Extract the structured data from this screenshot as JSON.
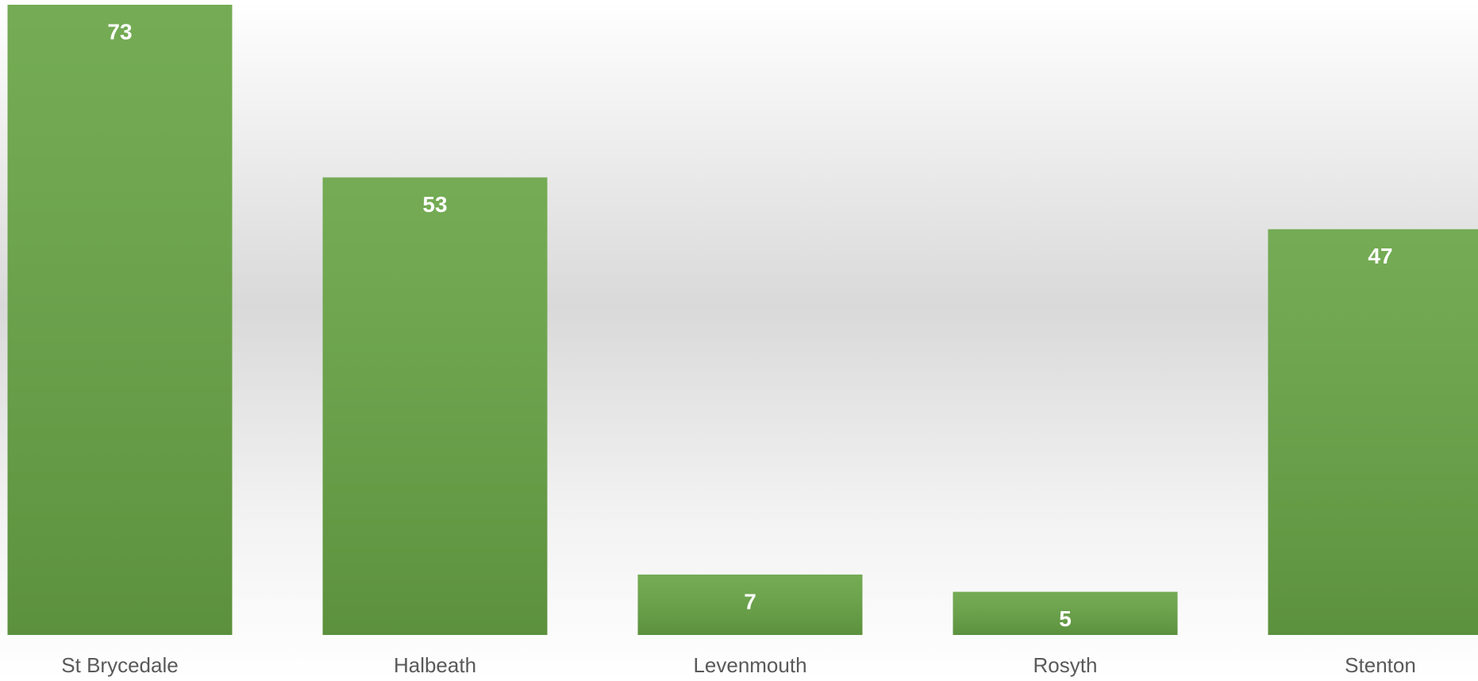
{
  "chart_data": {
    "type": "bar",
    "categories": [
      "St Brycedale",
      "Halbeath",
      "Levenmouth",
      "Rosyth",
      "Stenton"
    ],
    "values": [
      73,
      53,
      7,
      5,
      47
    ],
    "color": "#68a445"
  }
}
